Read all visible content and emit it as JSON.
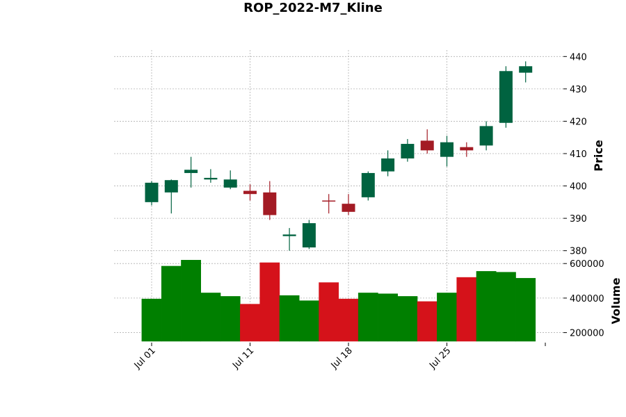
{
  "chart_data": {
    "type": "candlestick",
    "title": "ROP_2022-M7_Kline",
    "ylabel_price": "Price",
    "ylabel_volume": "Volume",
    "grid": true,
    "colors": {
      "up_candle": "#006340",
      "down_candle": "#a31b24",
      "up_volume": "#007f00",
      "down_volume": "#d5121a"
    },
    "price_ylim": [
      378,
      442
    ],
    "price_ticks": [
      "380",
      "390",
      "400",
      "410",
      "420",
      "430",
      "440"
    ],
    "volume_ylim": [
      150000,
      625000
    ],
    "volume_ticks": [
      "200000",
      "400000",
      "600000"
    ],
    "date_ticks": [
      "Jul 01",
      "Jul 11",
      "Jul 18",
      "Jul 25"
    ],
    "date_tick_index": [
      0,
      5,
      10,
      15
    ],
    "candles": [
      {
        "date": "2022-07-01",
        "open": 395.0,
        "high": 401.5,
        "low": 394.0,
        "close": 401.0,
        "volume": 395000
      },
      {
        "date": "2022-07-05",
        "open": 398.0,
        "high": 402.0,
        "low": 391.5,
        "close": 401.8,
        "volume": 585000
      },
      {
        "date": "2022-07-06",
        "open": 404.0,
        "high": 409.0,
        "low": 399.5,
        "close": 405.0,
        "volume": 620000
      },
      {
        "date": "2022-07-07",
        "open": 402.0,
        "high": 405.2,
        "low": 401.0,
        "close": 402.5,
        "volume": 430000
      },
      {
        "date": "2022-07-08",
        "open": 399.5,
        "high": 404.8,
        "low": 399.0,
        "close": 402.0,
        "volume": 410000
      },
      {
        "date": "2022-07-11",
        "open": 398.5,
        "high": 400.5,
        "low": 395.5,
        "close": 397.5,
        "volume": 365000
      },
      {
        "date": "2022-07-12",
        "open": 398.0,
        "high": 401.5,
        "low": 389.5,
        "close": 391.0,
        "volume": 605000
      },
      {
        "date": "2022-07-13",
        "open": 384.5,
        "high": 387.0,
        "low": 380.0,
        "close": 385.0,
        "volume": 415000
      },
      {
        "date": "2022-07-14",
        "open": 381.0,
        "high": 389.5,
        "low": 380.5,
        "close": 388.5,
        "volume": 385000
      },
      {
        "date": "2022-07-15",
        "open": 395.5,
        "high": 397.5,
        "low": 391.5,
        "close": 395.2,
        "volume": 490000
      },
      {
        "date": "2022-07-18",
        "open": 394.5,
        "high": 397.5,
        "low": 391.0,
        "close": 392.0,
        "volume": 395000
      },
      {
        "date": "2022-07-19",
        "open": 396.5,
        "high": 404.5,
        "low": 395.5,
        "close": 404.0,
        "volume": 430000
      },
      {
        "date": "2022-07-20",
        "open": 404.5,
        "high": 411.0,
        "low": 403.0,
        "close": 408.5,
        "volume": 425000
      },
      {
        "date": "2022-07-21",
        "open": 408.5,
        "high": 414.5,
        "low": 407.5,
        "close": 413.0,
        "volume": 410000
      },
      {
        "date": "2022-07-22",
        "open": 414.0,
        "high": 417.5,
        "low": 410.0,
        "close": 411.0,
        "volume": 380000
      },
      {
        "date": "2022-07-25",
        "open": 409.0,
        "high": 415.5,
        "low": 406.0,
        "close": 413.5,
        "volume": 430000
      },
      {
        "date": "2022-07-26",
        "open": 412.0,
        "high": 413.5,
        "low": 409.0,
        "close": 411.0,
        "volume": 520000
      },
      {
        "date": "2022-07-27",
        "open": 412.5,
        "high": 420.0,
        "low": 411.0,
        "close": 418.5,
        "volume": 555000
      },
      {
        "date": "2022-07-28",
        "open": 419.5,
        "high": 437.0,
        "low": 418.0,
        "close": 435.5,
        "volume": 550000
      },
      {
        "date": "2022-07-29",
        "open": 435.0,
        "high": 438.5,
        "low": 432.0,
        "close": 437.0,
        "volume": 515000
      }
    ]
  }
}
